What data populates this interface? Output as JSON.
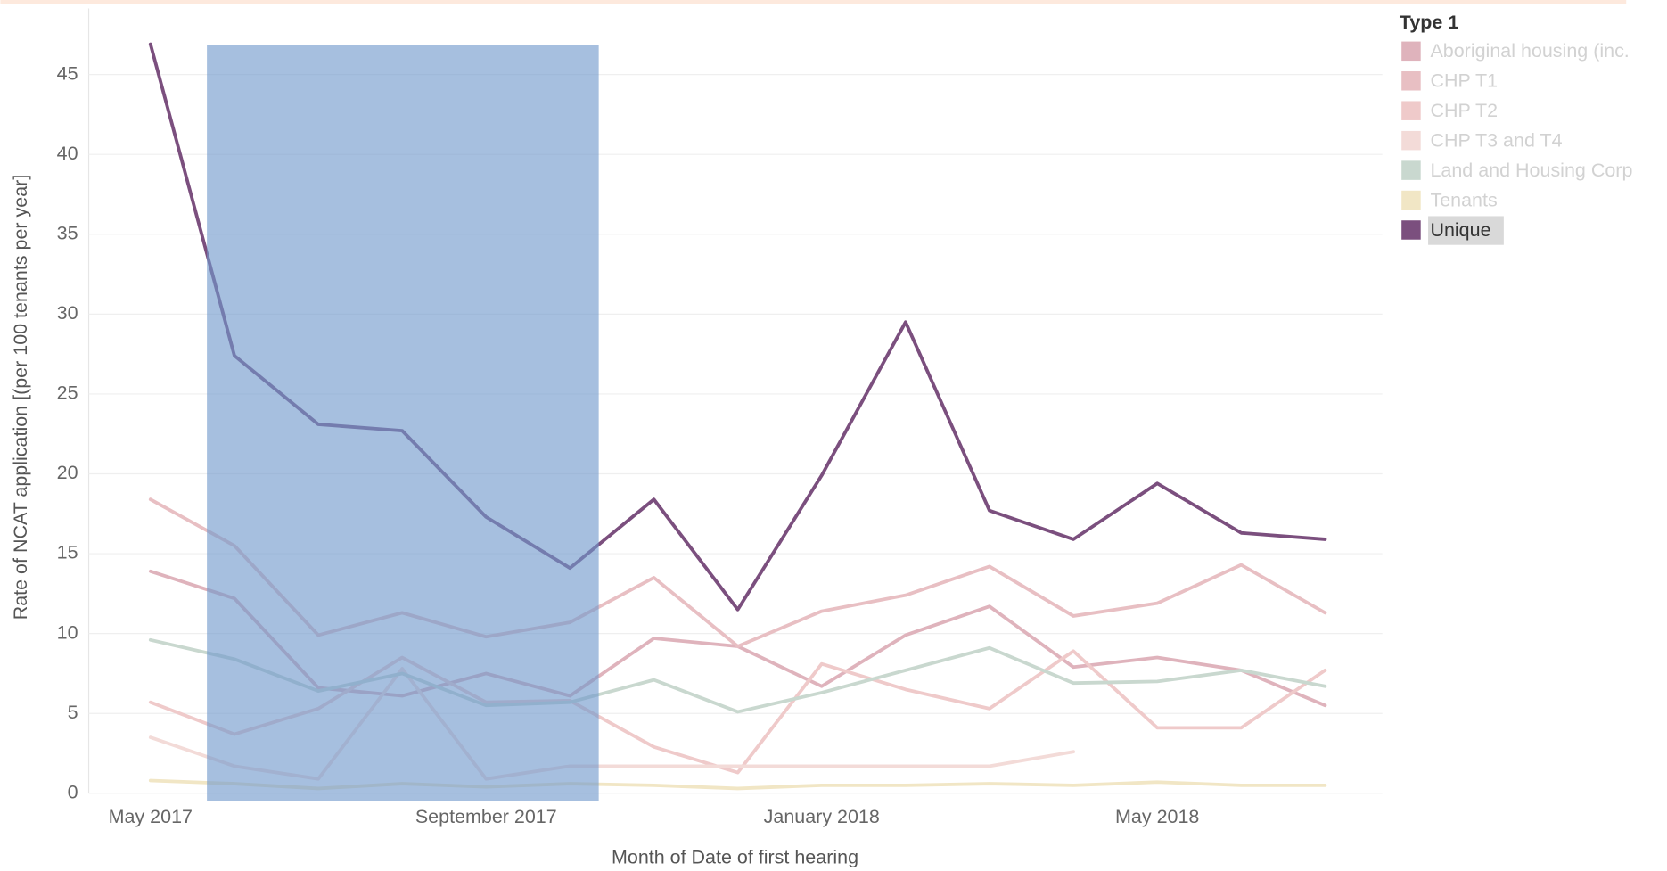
{
  "chart_data": {
    "type": "line",
    "x_label": "Month of Date of first hearing",
    "y_label": "Rate of NCAT application [(per 100 tenants per year]",
    "legend_title": "Type 1",
    "categories": [
      "May 2017",
      null,
      null,
      null,
      "September 2017",
      null,
      null,
      null,
      "January 2018",
      null,
      null,
      null,
      "May 2018",
      null,
      null
    ],
    "ylim": [
      -0.5,
      47
    ],
    "yticks": [
      0,
      5,
      10,
      15,
      20,
      25,
      30,
      35,
      40,
      45
    ],
    "grid": true,
    "highlighted": "Unique",
    "series": [
      {
        "name": "Aboriginal housing (inc.",
        "color": "#dfb3bc",
        "values": [
          13.9,
          12.2,
          6.6,
          6.1,
          7.5,
          6.1,
          9.7,
          9.2,
          6.7,
          9.9,
          11.7,
          7.9,
          8.5,
          7.7,
          5.5
        ]
      },
      {
        "name": "CHP T1",
        "color": "#e8bfc3",
        "values": [
          18.4,
          15.5,
          9.9,
          11.3,
          9.8,
          10.7,
          13.5,
          9.2,
          11.4,
          12.4,
          14.2,
          11.1,
          11.9,
          14.3,
          11.3
        ]
      },
      {
        "name": "CHP T2",
        "color": "#efcaca",
        "values": [
          5.7,
          3.7,
          5.3,
          8.5,
          5.7,
          5.8,
          2.9,
          1.3,
          8.1,
          6.5,
          5.3,
          8.9,
          4.1,
          4.1,
          7.7
        ]
      },
      {
        "name": "CHP T3 and T4",
        "color": "#f3dbd8",
        "values": [
          3.5,
          1.7,
          0.9,
          7.8,
          0.9,
          1.7,
          1.7,
          1.7,
          1.7,
          1.7,
          1.7,
          2.6,
          null,
          null,
          null
        ]
      },
      {
        "name": "Land and Housing Corp",
        "color": "#c9d8cf",
        "values": [
          9.6,
          8.4,
          6.4,
          7.5,
          5.5,
          5.7,
          7.1,
          5.1,
          6.3,
          7.7,
          9.1,
          6.9,
          7.0,
          7.7,
          6.7
        ]
      },
      {
        "name": "Tenants",
        "color": "#f1e6c5",
        "values": [
          0.8,
          0.6,
          0.3,
          0.6,
          0.4,
          0.6,
          0.5,
          0.3,
          0.5,
          0.5,
          0.6,
          0.5,
          0.7,
          0.5,
          0.5
        ]
      },
      {
        "name": "Unique",
        "color": "#7b4f7e",
        "values": [
          46.9,
          27.4,
          23.1,
          22.7,
          17.3,
          14.1,
          18.4,
          11.5,
          19.9,
          29.5,
          17.7,
          15.9,
          19.4,
          16.3,
          15.9
        ]
      }
    ]
  }
}
